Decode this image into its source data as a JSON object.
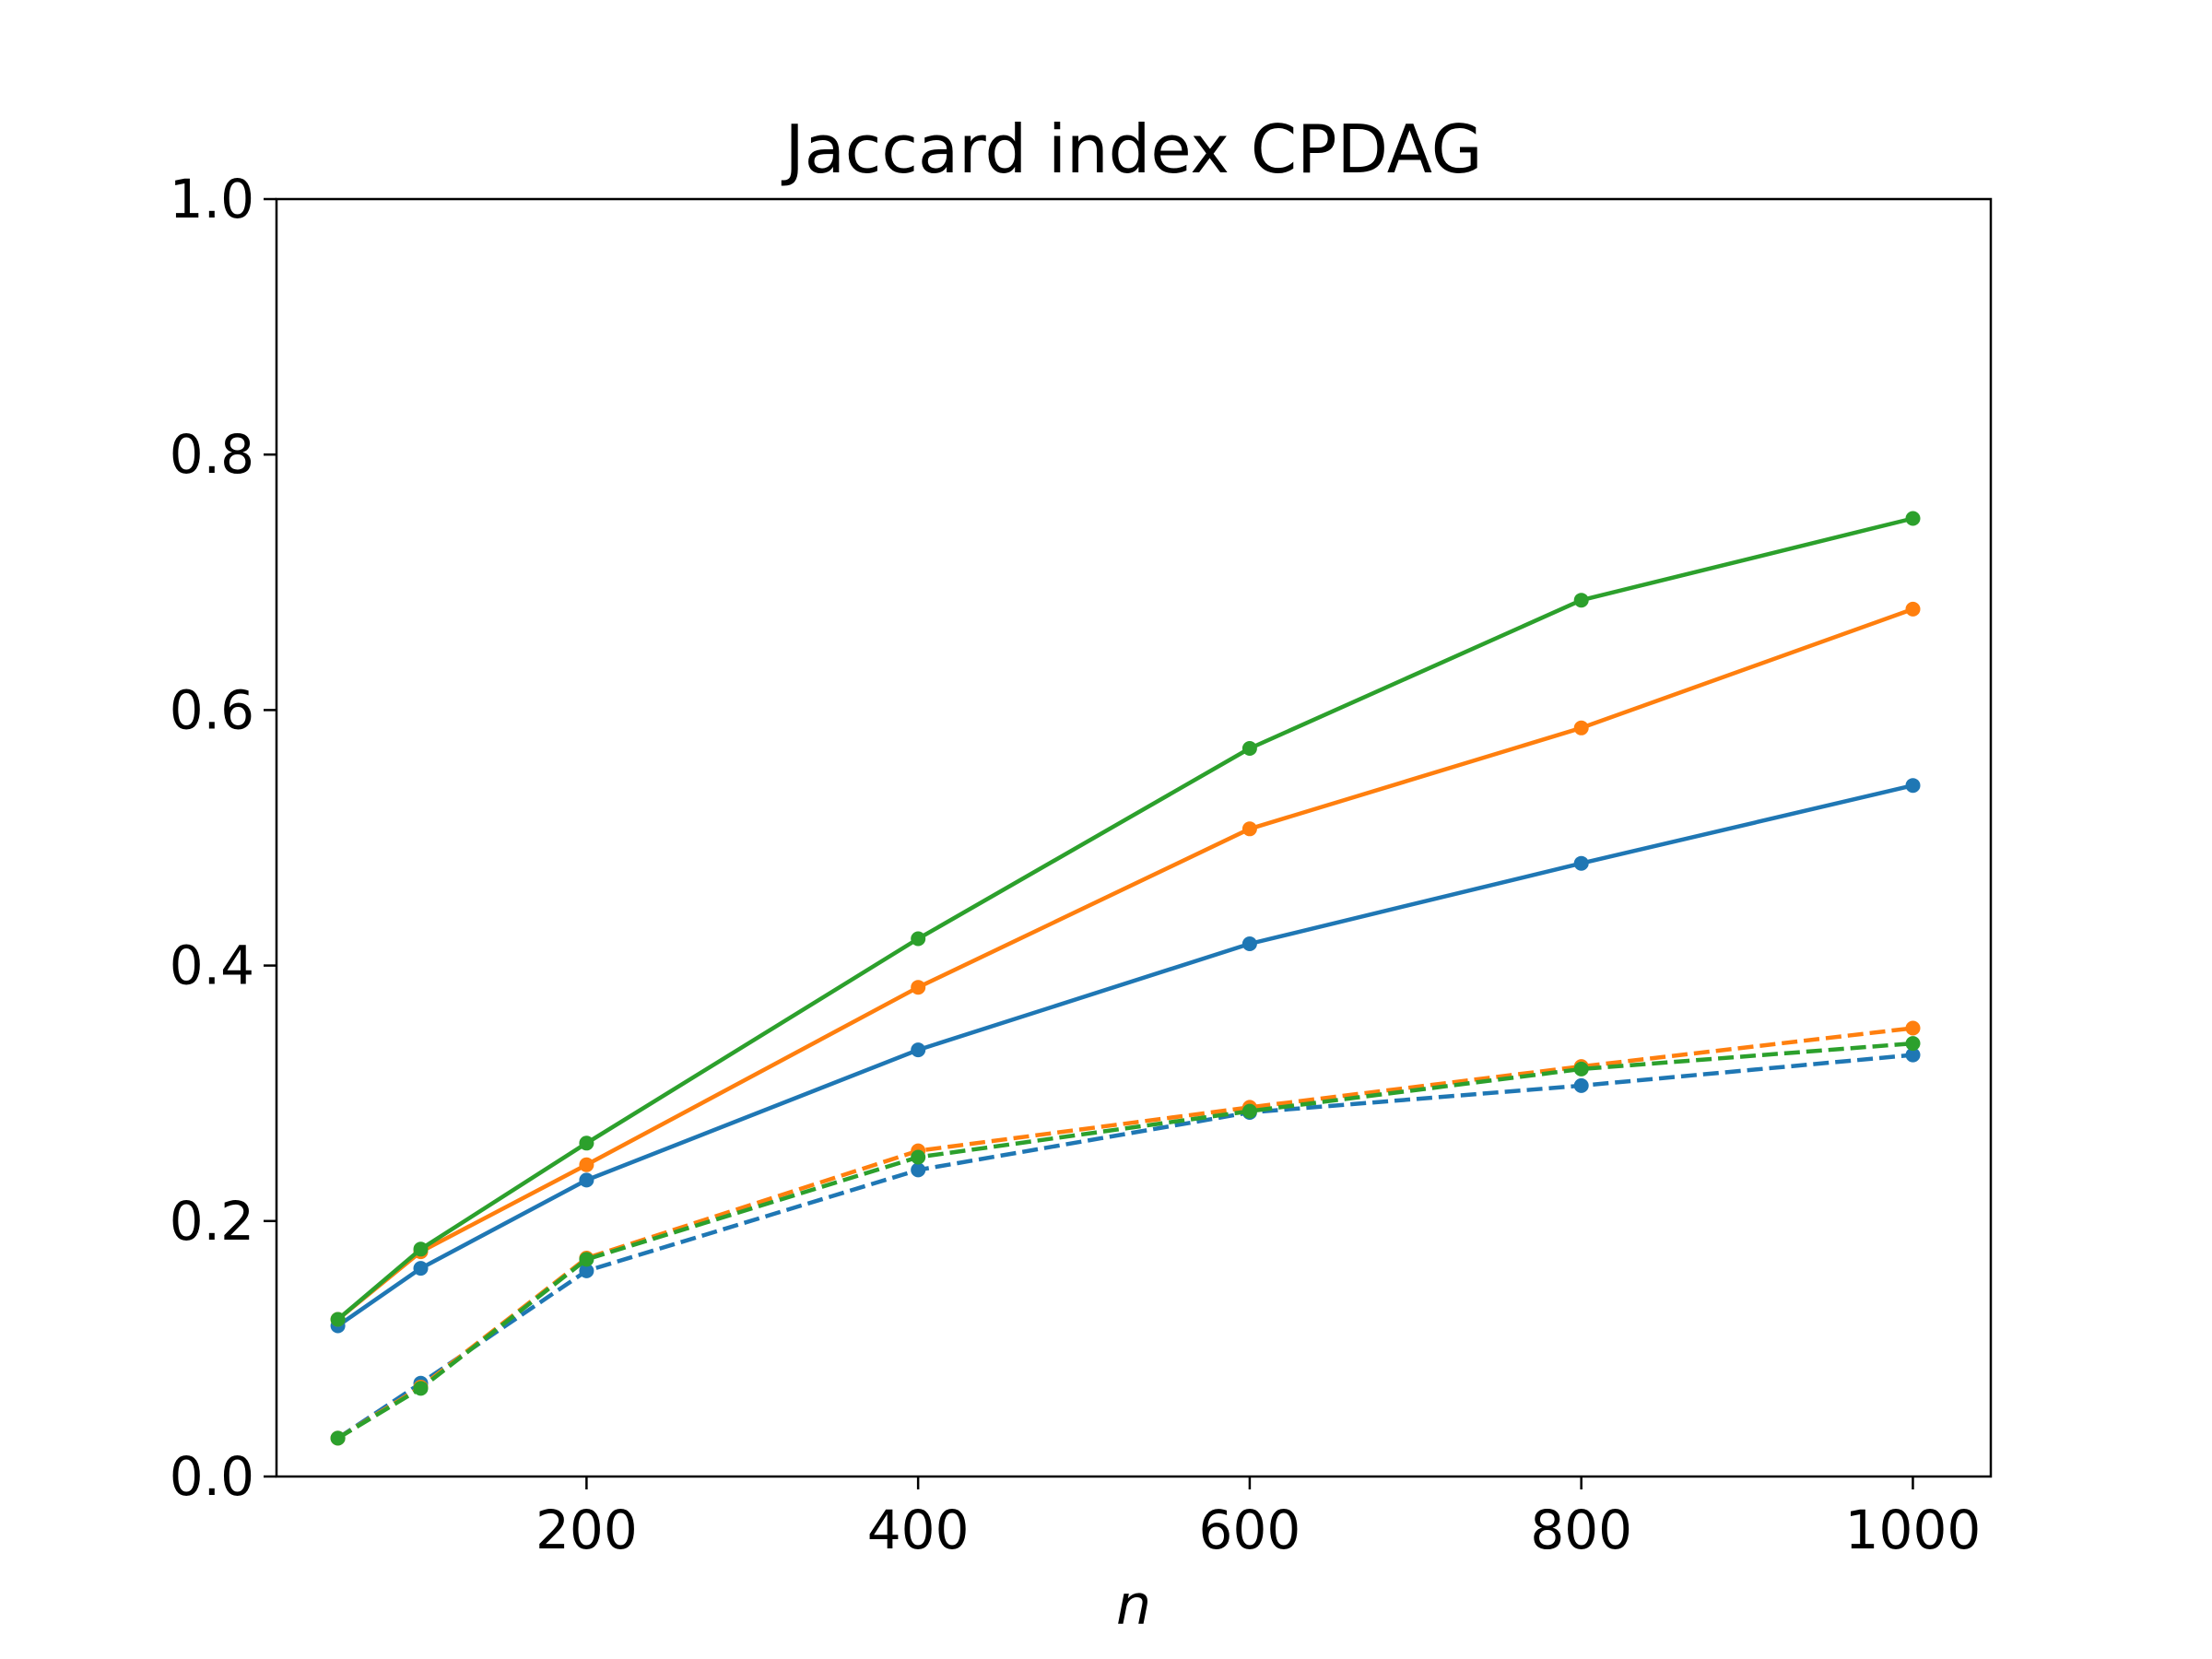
{
  "chart_data": {
    "type": "line",
    "title": "Jaccard index CPDAG",
    "xlabel": "n",
    "ylabel": "",
    "xlim": [
      13,
      1047
    ],
    "ylim": [
      0.0,
      1.0
    ],
    "x": [
      50,
      100,
      200,
      400,
      600,
      800,
      1000
    ],
    "xticks": [
      200,
      400,
      600,
      800,
      1000
    ],
    "yticks": [
      0.0,
      0.2,
      0.4,
      0.6,
      0.8,
      1.0
    ],
    "xtick_labels": [
      "200",
      "400",
      "600",
      "800",
      "1000"
    ],
    "ytick_labels": [
      "0.0",
      "0.2",
      "0.4",
      "0.6",
      "0.8",
      "1.0"
    ],
    "grid": false,
    "legend": "none",
    "series": [
      {
        "color": "#1f77b4",
        "style": "solid",
        "values": [
          0.118,
          0.163,
          0.232,
          0.334,
          0.417,
          0.48,
          0.541
        ]
      },
      {
        "color": "#ff7f0e",
        "style": "solid",
        "values": [
          0.123,
          0.176,
          0.244,
          0.383,
          0.507,
          0.586,
          0.679
        ]
      },
      {
        "color": "#2ca02c",
        "style": "solid",
        "values": [
          0.123,
          0.178,
          0.261,
          0.421,
          0.57,
          0.686,
          0.75
        ]
      },
      {
        "color": "#1f77b4",
        "style": "dashed",
        "values": [
          0.03,
          0.073,
          0.161,
          0.24,
          0.285,
          0.306,
          0.33
        ]
      },
      {
        "color": "#ff7f0e",
        "style": "dashed",
        "values": [
          0.03,
          0.07,
          0.171,
          0.255,
          0.289,
          0.321,
          0.351
        ]
      },
      {
        "color": "#2ca02c",
        "style": "dashed",
        "values": [
          0.03,
          0.069,
          0.17,
          0.25,
          0.286,
          0.319,
          0.339
        ]
      }
    ]
  }
}
